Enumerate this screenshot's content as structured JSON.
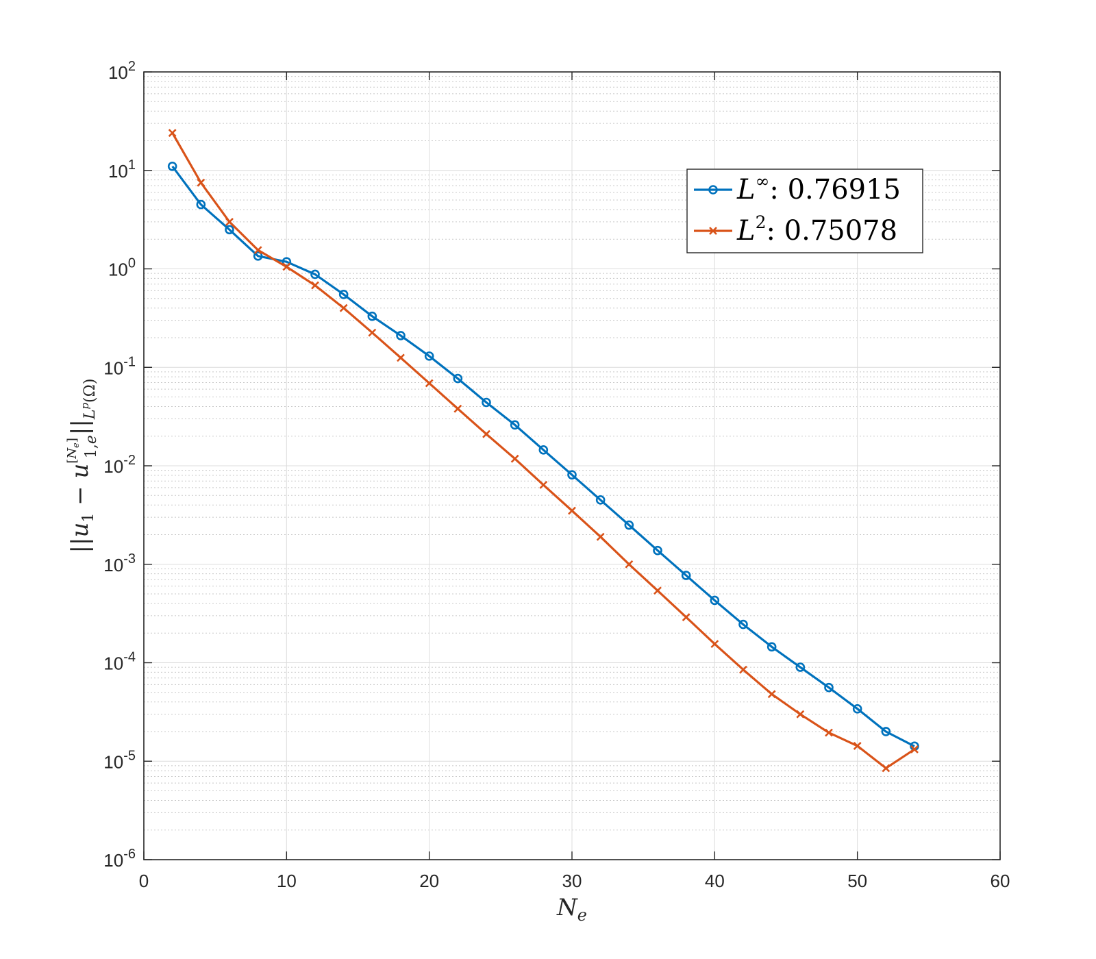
{
  "chart_data": {
    "type": "line",
    "y_scale": "log",
    "xlim": [
      0,
      60
    ],
    "ylim": [
      1e-06,
      100
    ],
    "grid": true,
    "legend_position": "top-right",
    "xlabel": "N_e",
    "ylabel": "||u_1 - u_{1,e}^{[N_e]}||_{L^p(Ω)}",
    "x_ticks": [
      0,
      10,
      20,
      30,
      40,
      50,
      60
    ],
    "x_tick_labels": [
      "0",
      "10",
      "20",
      "30",
      "40",
      "50",
      "60"
    ],
    "y_ticks": [
      {
        "value": 100,
        "base": "10",
        "exp": "2"
      },
      {
        "value": 10,
        "base": "10",
        "exp": "1"
      },
      {
        "value": 1,
        "base": "10",
        "exp": "0"
      },
      {
        "value": 0.1,
        "base": "10",
        "exp": "-1"
      },
      {
        "value": 0.01,
        "base": "10",
        "exp": "-2"
      },
      {
        "value": 0.001,
        "base": "10",
        "exp": "-3"
      },
      {
        "value": 0.0001,
        "base": "10",
        "exp": "-4"
      },
      {
        "value": 1e-05,
        "base": "10",
        "exp": "-5"
      },
      {
        "value": 1e-06,
        "base": "10",
        "exp": "-6"
      }
    ],
    "x": [
      2,
      4,
      6,
      8,
      10,
      12,
      14,
      16,
      18,
      20,
      22,
      24,
      26,
      28,
      30,
      32,
      34,
      36,
      38,
      40,
      42,
      44,
      46,
      48,
      50,
      52,
      54
    ],
    "series": [
      {
        "name": "L^∞: 0.76915",
        "legend_base": "L",
        "legend_sup": "∞",
        "legend_value": ": 0.76915",
        "color": "#0072BD",
        "marker": "circle",
        "values": [
          11,
          4.5,
          2.5,
          1.35,
          1.18,
          0.88,
          0.55,
          0.33,
          0.21,
          0.13,
          0.077,
          0.044,
          0.026,
          0.0145,
          0.0081,
          0.0045,
          0.0025,
          0.00138,
          0.00077,
          0.00043,
          0.000245,
          0.000145,
          9e-05,
          5.6e-05,
          3.4e-05,
          2e-05,
          1.42e-05
        ]
      },
      {
        "name": "L^2: 0.75078",
        "legend_base": "L",
        "legend_sup": "2",
        "legend_value": ": 0.75078",
        "color": "#D95319",
        "marker": "x",
        "values": [
          24,
          7.5,
          3,
          1.55,
          1.05,
          0.68,
          0.4,
          0.225,
          0.125,
          0.069,
          0.038,
          0.021,
          0.0118,
          0.0064,
          0.0035,
          0.0019,
          0.001,
          0.00054,
          0.00029,
          0.000155,
          8.5e-05,
          4.8e-05,
          3e-05,
          1.95e-05,
          1.43e-05,
          8.5e-06,
          1.32e-05
        ]
      }
    ]
  }
}
